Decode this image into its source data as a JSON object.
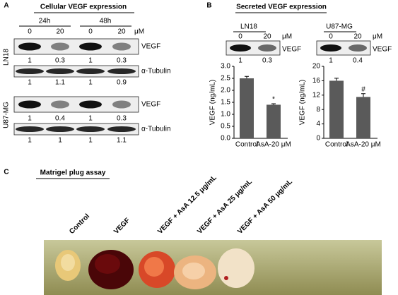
{
  "panel_a": {
    "label": "A",
    "title": "Cellular VEGF expression",
    "timepoints": [
      "24h",
      "48h"
    ],
    "doses": [
      0,
      20,
      0,
      20
    ],
    "unit": "μM",
    "cell_lines": [
      {
        "name": "LN18",
        "vegf_label": "VEGF",
        "vegf_ratios": [
          1,
          0.3,
          1,
          0.3
        ],
        "tubulin_label": "α-Tubulin",
        "tubulin_ratios": [
          1,
          1.1,
          1,
          0.9
        ]
      },
      {
        "name": "U87-MG",
        "vegf_label": "VEGF",
        "vegf_ratios": [
          1,
          0.4,
          1,
          0.3
        ],
        "tubulin_label": "α-Tubulin",
        "tubulin_ratios": [
          1,
          1,
          1,
          1.1
        ]
      }
    ]
  },
  "panel_b": {
    "label": "B",
    "title": "Secreted VEGF expression",
    "blots": [
      {
        "name": "LN18",
        "doses": [
          0,
          20
        ],
        "unit": "μM",
        "protein": "VEGF",
        "ratios": [
          1,
          0.3
        ]
      },
      {
        "name": "U87-MG",
        "doses": [
          0,
          20
        ],
        "unit": "μM",
        "protein": "VEGF",
        "ratios": [
          1,
          0.4
        ]
      }
    ],
    "charts": [
      {
        "type": "bar",
        "y_label": "VEGF (ng/mL)",
        "categories": [
          "Control",
          "AsA-20 μM"
        ],
        "values": [
          2.5,
          1.4
        ],
        "errors": [
          0.08,
          0.04
        ],
        "color": "#5a5a5a",
        "ylim": [
          0,
          3
        ],
        "yticks": [
          {
            "value": 0,
            "label": "0.0"
          },
          0.5,
          {
            "value": 1,
            "label": "1.0"
          },
          1.5,
          {
            "value": 2,
            "label": "2.0"
          },
          2.5,
          {
            "value": 3,
            "label": "3.0"
          }
        ],
        "significance": {
          "index": 1,
          "label": "*"
        }
      },
      {
        "type": "bar",
        "y_label": "VEGF (ng/mL)",
        "categories": [
          "Control",
          "AsA-20 μM"
        ],
        "values": [
          16,
          11.5
        ],
        "errors": [
          0.7,
          0.9
        ],
        "color": "#5a5a5a",
        "ylim": [
          0,
          20
        ],
        "yticks": [
          0,
          4,
          8,
          12,
          16,
          20
        ],
        "significance": {
          "index": 1,
          "label": "#"
        }
      }
    ]
  },
  "panel_c": {
    "label": "C",
    "title": "Matrigel plug assay",
    "conditions": [
      "Control",
      "VEGF",
      "VEGF + AsA 12.5 μg/mL",
      "VEGF + AsA 25 μg/mL",
      "VEGF + AsA 50 μg/mL"
    ]
  }
}
